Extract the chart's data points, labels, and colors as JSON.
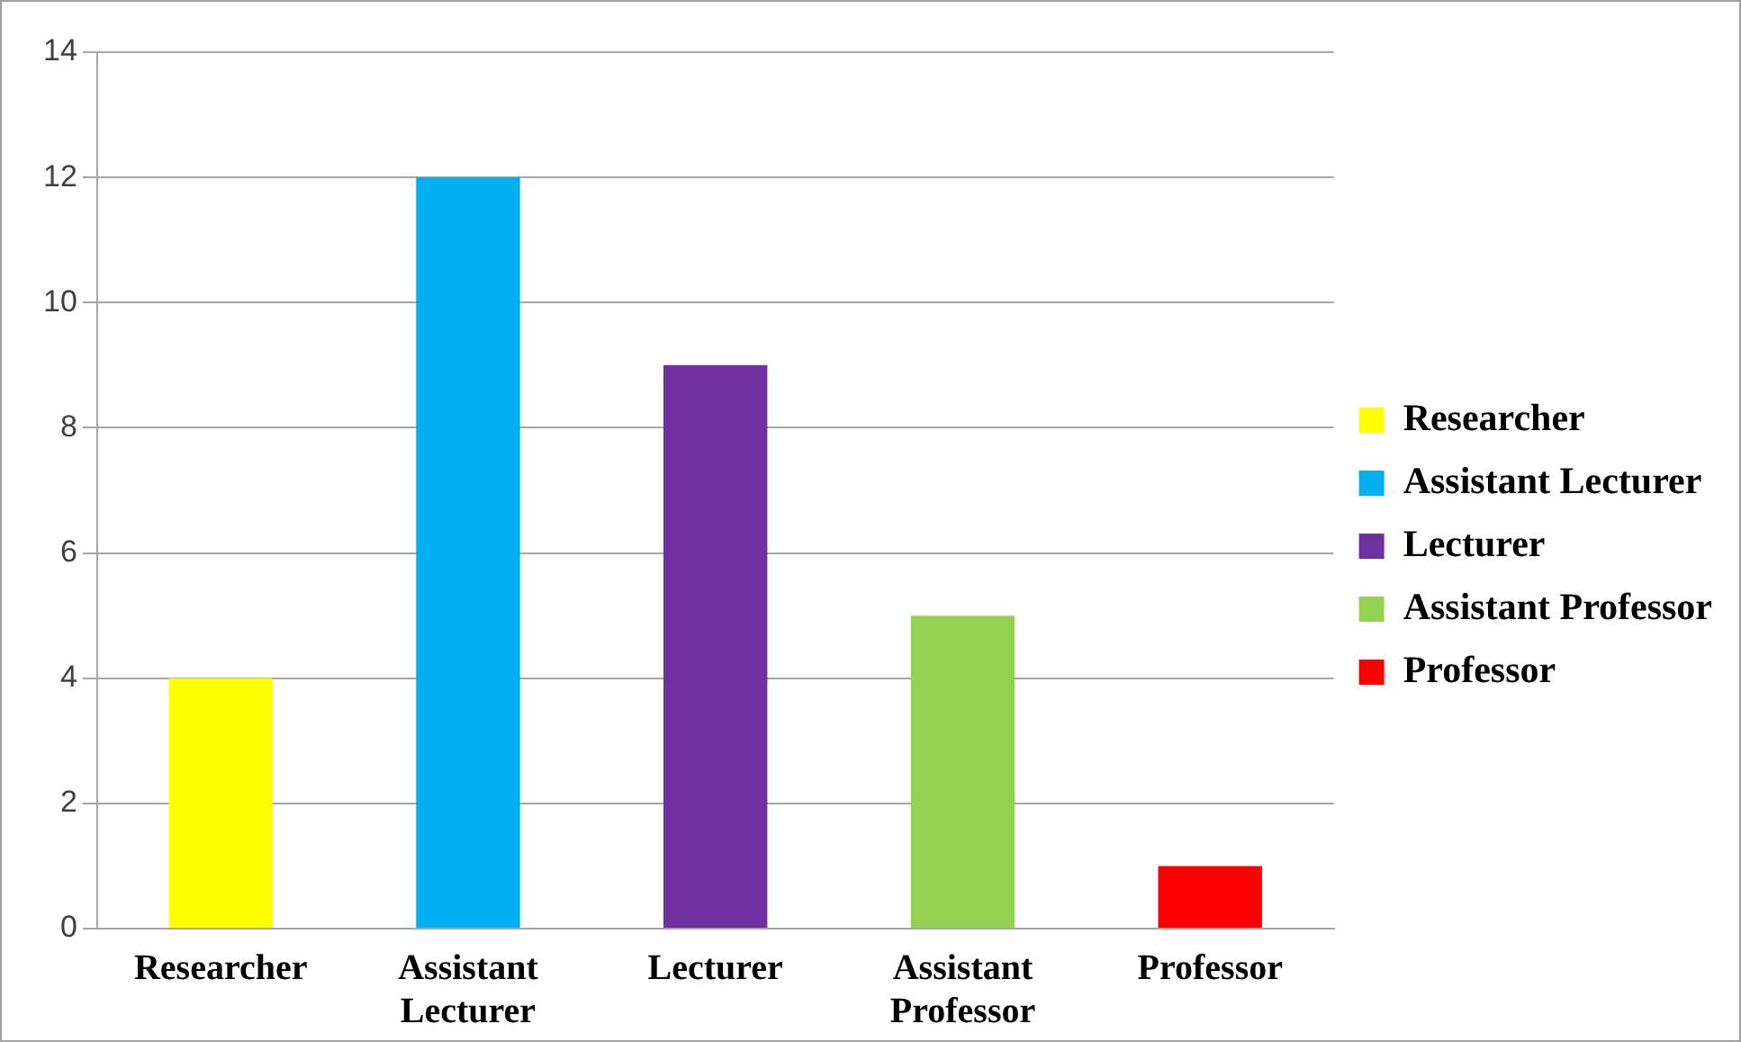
{
  "chart_data": {
    "type": "bar",
    "categories": [
      "Researcher",
      "Assistant Lecturer",
      "Lecturer",
      "Assistant Professor",
      "Professor"
    ],
    "series": [
      {
        "name": "Researcher",
        "color": "#ffff00",
        "values": [
          4,
          null,
          null,
          null,
          null
        ]
      },
      {
        "name": "Assistant Lecturer",
        "color": "#00b0f0",
        "values": [
          null,
          12,
          null,
          null,
          null
        ]
      },
      {
        "name": "Lecturer",
        "color": "#7030a0",
        "values": [
          null,
          null,
          9,
          null,
          null
        ]
      },
      {
        "name": "Assistant Professor",
        "color": "#92d050",
        "values": [
          null,
          null,
          null,
          5,
          null
        ]
      },
      {
        "name": "Professor",
        "color": "#ff0000",
        "values": [
          null,
          null,
          null,
          null,
          1
        ]
      }
    ],
    "ylim": [
      0,
      14
    ],
    "yticks": [
      0,
      2,
      4,
      6,
      8,
      10,
      12,
      14
    ],
    "grid": "y",
    "legend": "right"
  }
}
